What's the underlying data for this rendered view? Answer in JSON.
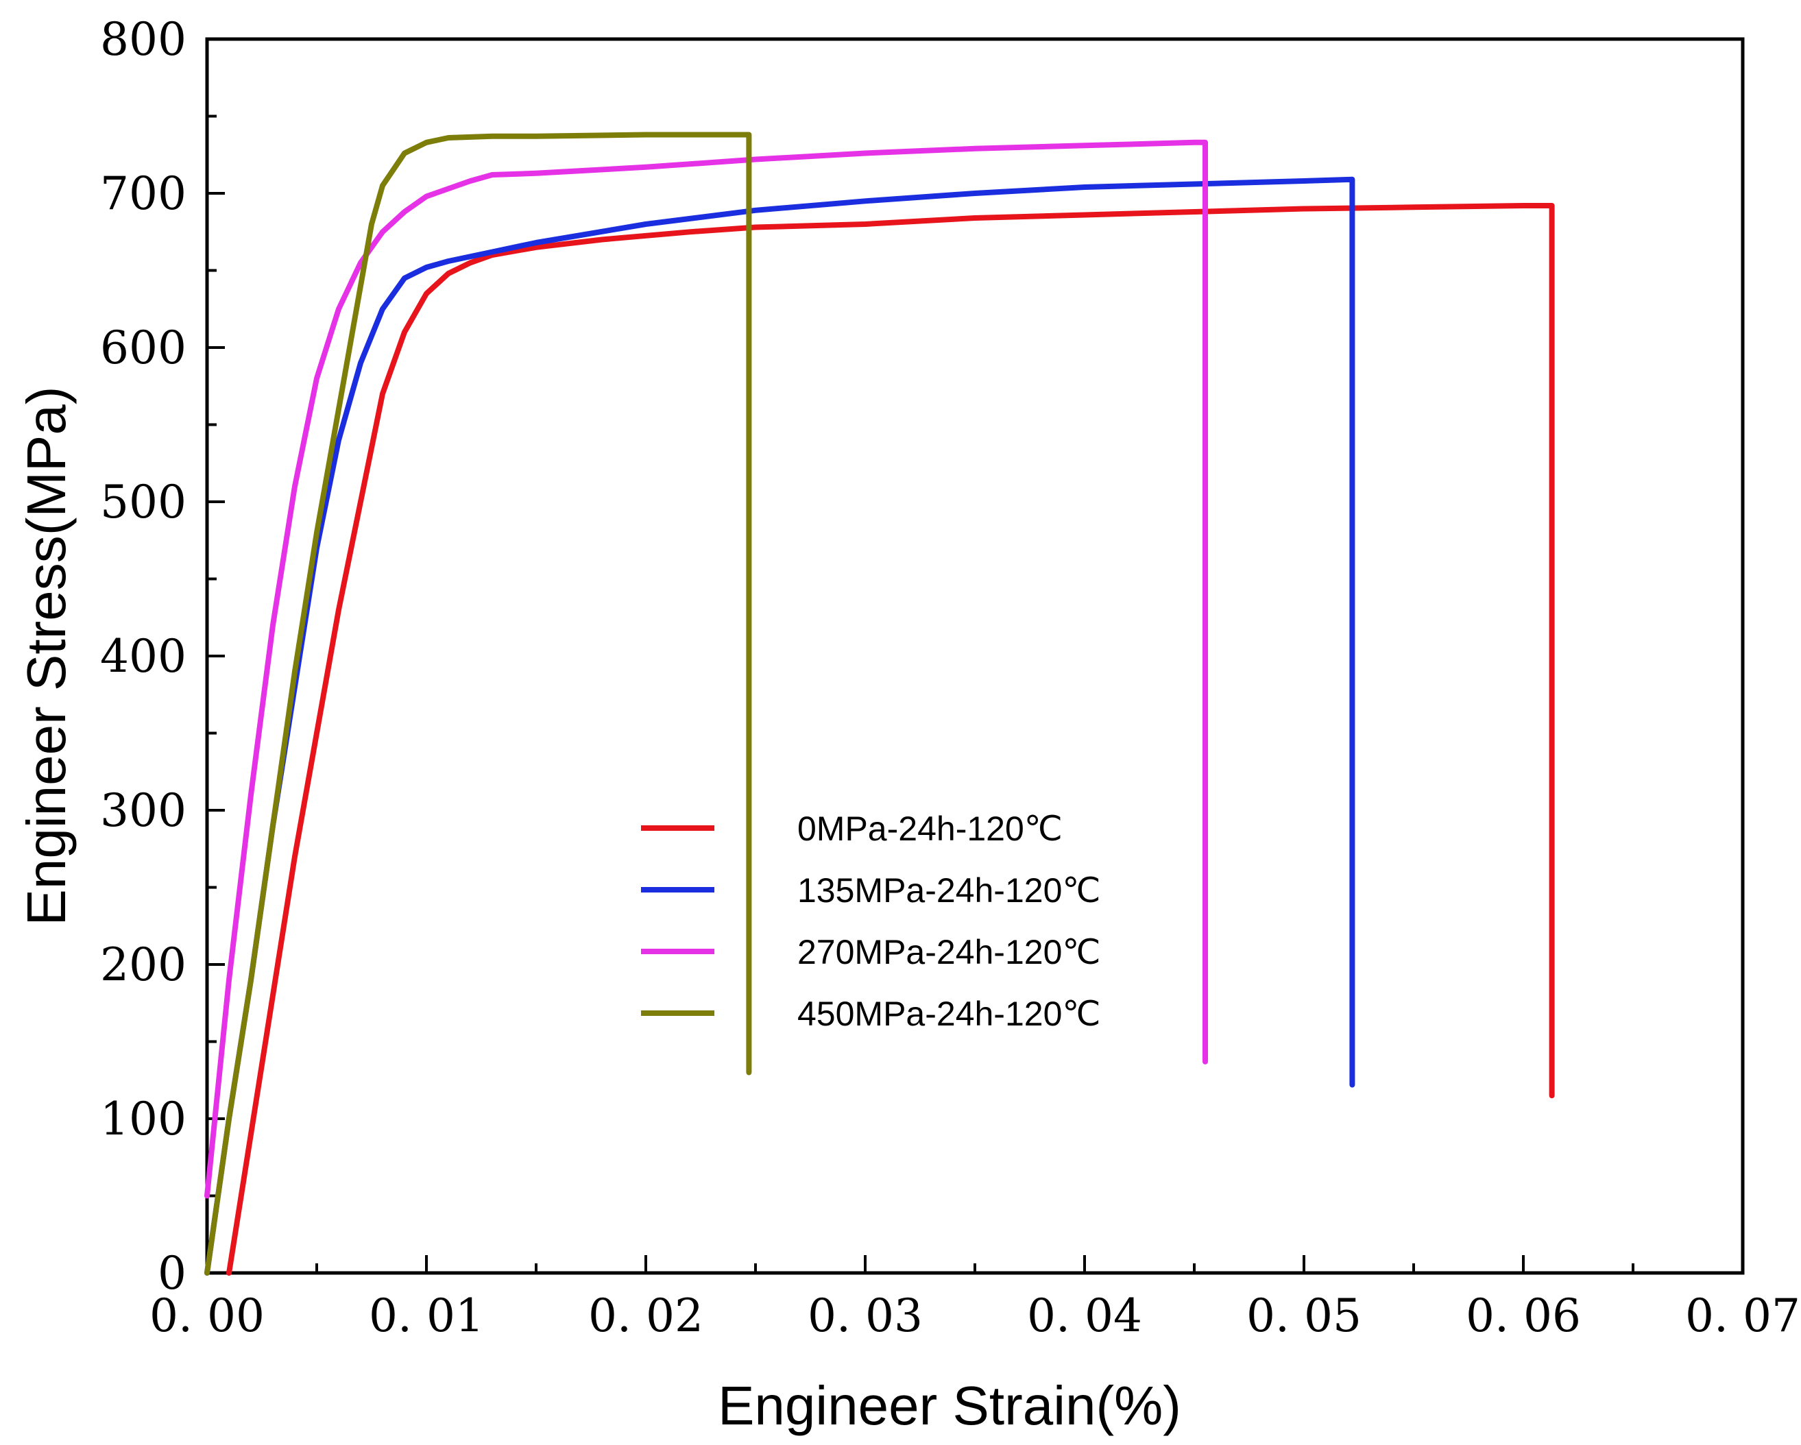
{
  "chart_data": {
    "type": "line",
    "title": "",
    "xlabel": "Engineer Strain(%)",
    "ylabel": "Engineer Stress(MPa)",
    "xlim": [
      0,
      0.07
    ],
    "ylim": [
      0,
      800
    ],
    "x_ticks": [
      0,
      0.01,
      0.02,
      0.03,
      0.04,
      0.05,
      0.06,
      0.07
    ],
    "x_tick_labels": [
      "0. 00",
      "0. 01",
      "0. 02",
      "0. 03",
      "0. 04",
      "0. 05",
      "0. 06",
      "0. 07"
    ],
    "y_ticks": [
      0,
      100,
      200,
      300,
      400,
      500,
      600,
      700,
      800
    ],
    "y_tick_labels": [
      "0",
      "100",
      "200",
      "300",
      "400",
      "500",
      "600",
      "700",
      "800"
    ],
    "grid": false,
    "legend_position": "center",
    "series": [
      {
        "name": "0MPa-24h-120℃",
        "color": "#e8141c",
        "x": [
          0.001,
          0.002,
          0.003,
          0.004,
          0.005,
          0.006,
          0.007,
          0.008,
          0.009,
          0.01,
          0.011,
          0.012,
          0.013,
          0.015,
          0.018,
          0.022,
          0.025,
          0.03,
          0.035,
          0.04,
          0.045,
          0.05,
          0.055,
          0.06,
          0.0613,
          0.0613
        ],
        "y": [
          0,
          90,
          180,
          270,
          350,
          430,
          500,
          570,
          610,
          635,
          648,
          655,
          660,
          665,
          670,
          675,
          678,
          680,
          684,
          686,
          688,
          690,
          691,
          692,
          692,
          115
        ]
      },
      {
        "name": "135MPa-24h-120℃",
        "color": "#1a2ee0",
        "x": [
          0.0,
          0.001,
          0.002,
          0.003,
          0.004,
          0.005,
          0.006,
          0.007,
          0.008,
          0.009,
          0.01,
          0.011,
          0.013,
          0.015,
          0.02,
          0.025,
          0.03,
          0.035,
          0.04,
          0.045,
          0.05,
          0.0522,
          0.0522
        ],
        "y": [
          0,
          100,
          190,
          290,
          380,
          470,
          540,
          590,
          625,
          645,
          652,
          656,
          662,
          668,
          680,
          689,
          695,
          700,
          704,
          706,
          708,
          709,
          122
        ]
      },
      {
        "name": "270MPa-24h-120℃",
        "color": "#e632e6",
        "x": [
          0.0,
          0.001,
          0.002,
          0.003,
          0.004,
          0.005,
          0.006,
          0.007,
          0.008,
          0.009,
          0.01,
          0.012,
          0.013,
          0.015,
          0.02,
          0.025,
          0.03,
          0.035,
          0.04,
          0.045,
          0.0455,
          0.0455
        ],
        "y": [
          50,
          190,
          310,
          420,
          510,
          580,
          625,
          655,
          675,
          688,
          698,
          708,
          712,
          713,
          717,
          722,
          726,
          729,
          731,
          733,
          733,
          137
        ]
      },
      {
        "name": "450MPa-24h-120℃",
        "color": "#7d7d0a",
        "x": [
          0.0,
          0.001,
          0.002,
          0.003,
          0.004,
          0.005,
          0.006,
          0.007,
          0.0075,
          0.008,
          0.009,
          0.01,
          0.011,
          0.013,
          0.015,
          0.02,
          0.0247,
          0.0247
        ],
        "y": [
          0,
          100,
          190,
          290,
          390,
          480,
          560,
          640,
          680,
          705,
          726,
          733,
          736,
          737,
          737,
          738,
          738,
          130
        ]
      }
    ]
  }
}
